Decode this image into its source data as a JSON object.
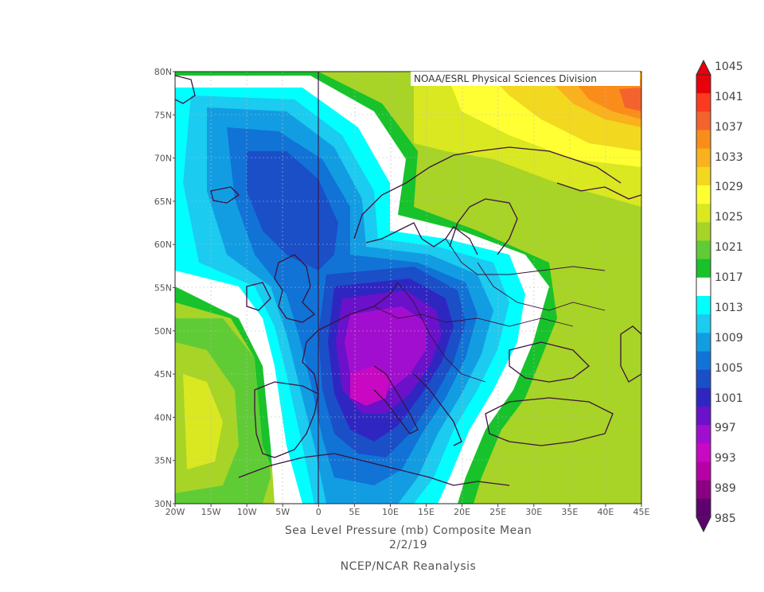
{
  "credit": "NOAA/ESRL Physical Sciences Division",
  "caption": {
    "line1": "Sea Level Pressure (mb) Composite Mean",
    "line2": "2/2/19",
    "line3": "NCEP/NCAR Reanalysis"
  },
  "axes": {
    "x_labels": [
      "20W",
      "15W",
      "10W",
      "5W",
      "0",
      "5E",
      "10E",
      "15E",
      "20E",
      "25E",
      "30E",
      "35E",
      "40E",
      "45E"
    ],
    "y_labels": [
      "80N",
      "75N",
      "70N",
      "65N",
      "60N",
      "55N",
      "50N",
      "45N",
      "40N",
      "35N",
      "30N"
    ]
  },
  "colorbar": {
    "labels": [
      "1045",
      "1041",
      "1037",
      "1033",
      "1029",
      "1025",
      "1021",
      "1017",
      "1013",
      "1009",
      "1005",
      "1001",
      "997",
      "993",
      "989",
      "985"
    ],
    "colors": [
      "#e8000b",
      "#fb3b1f",
      "#f4632d",
      "#fa8d1a",
      "#f9b11d",
      "#f2d81f",
      "#ffff33",
      "#d9e821",
      "#a7d426",
      "#5fcc36",
      "#18c22b",
      "#ffffff",
      "#00ffff",
      "#1ccbf0",
      "#129de3",
      "#1173d6",
      "#1a4fc8",
      "#2f26c2",
      "#6a11c9",
      "#a20ecf",
      "#c808c2",
      "#b600a5",
      "#8a0083",
      "#5e006d"
    ]
  },
  "map": {
    "projection": "equirectangular",
    "lon_range": [
      -20,
      45
    ],
    "lat_range": [
      30,
      80
    ],
    "low_center": {
      "lon": 7,
      "lat": 42,
      "pressure_mb": 993
    },
    "high_center": {
      "lon": 43,
      "lat": 76,
      "pressure_mb": 1037
    }
  }
}
